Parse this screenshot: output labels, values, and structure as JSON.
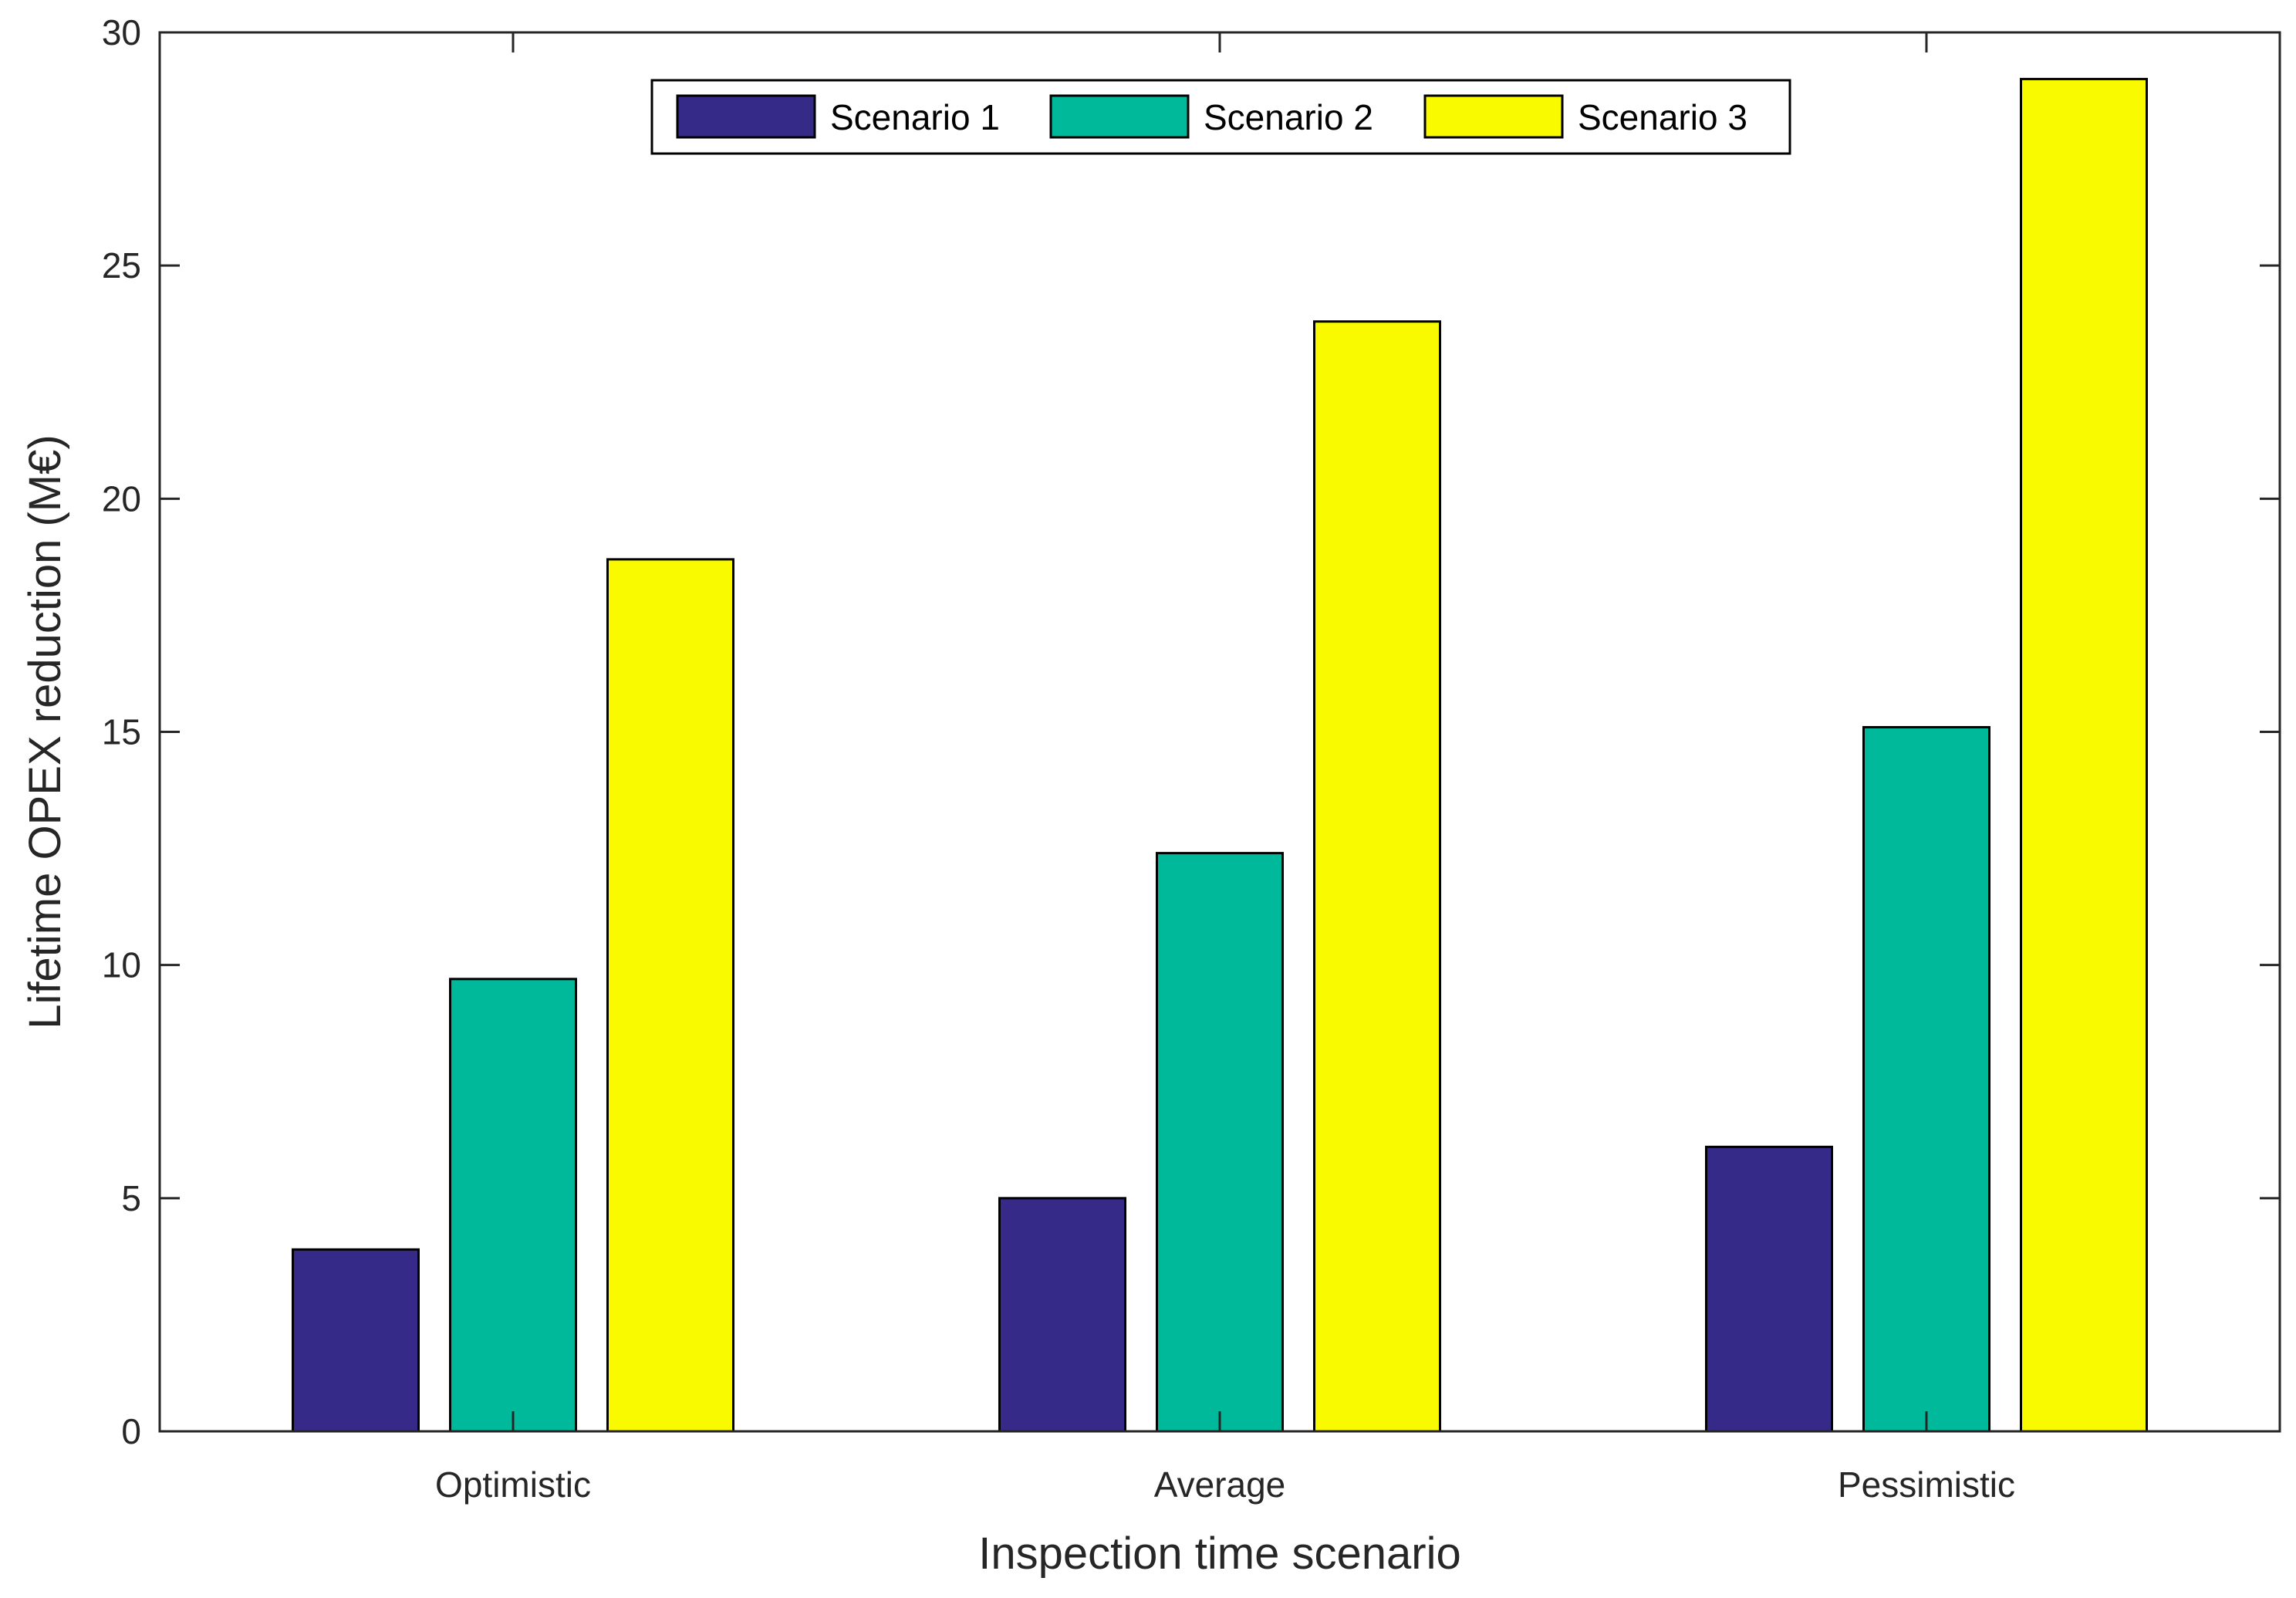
{
  "chart_data": {
    "type": "bar",
    "title": "",
    "xlabel": "Inspection time scenario",
    "ylabel": "Lifetime OPEX reduction (M€)",
    "ylim": [
      0,
      30
    ],
    "yticks": [
      0,
      5,
      10,
      15,
      20,
      25,
      30
    ],
    "ytick_labels": [
      "0",
      "5",
      "10",
      "15",
      "20",
      "25",
      "30"
    ],
    "categories": [
      "Optimistic",
      "Average",
      "Pessimistic"
    ],
    "series": [
      {
        "name": "Scenario 1",
        "color": "#352a87",
        "values": [
          3.9,
          5.0,
          6.1
        ]
      },
      {
        "name": "Scenario 2",
        "color": "#00b89a",
        "values": [
          9.7,
          12.4,
          15.1
        ]
      },
      {
        "name": "Scenario 3",
        "color": "#f9fa00",
        "values": [
          18.7,
          23.8,
          29.0
        ]
      }
    ],
    "legend_position": "top-center",
    "grid": false
  }
}
